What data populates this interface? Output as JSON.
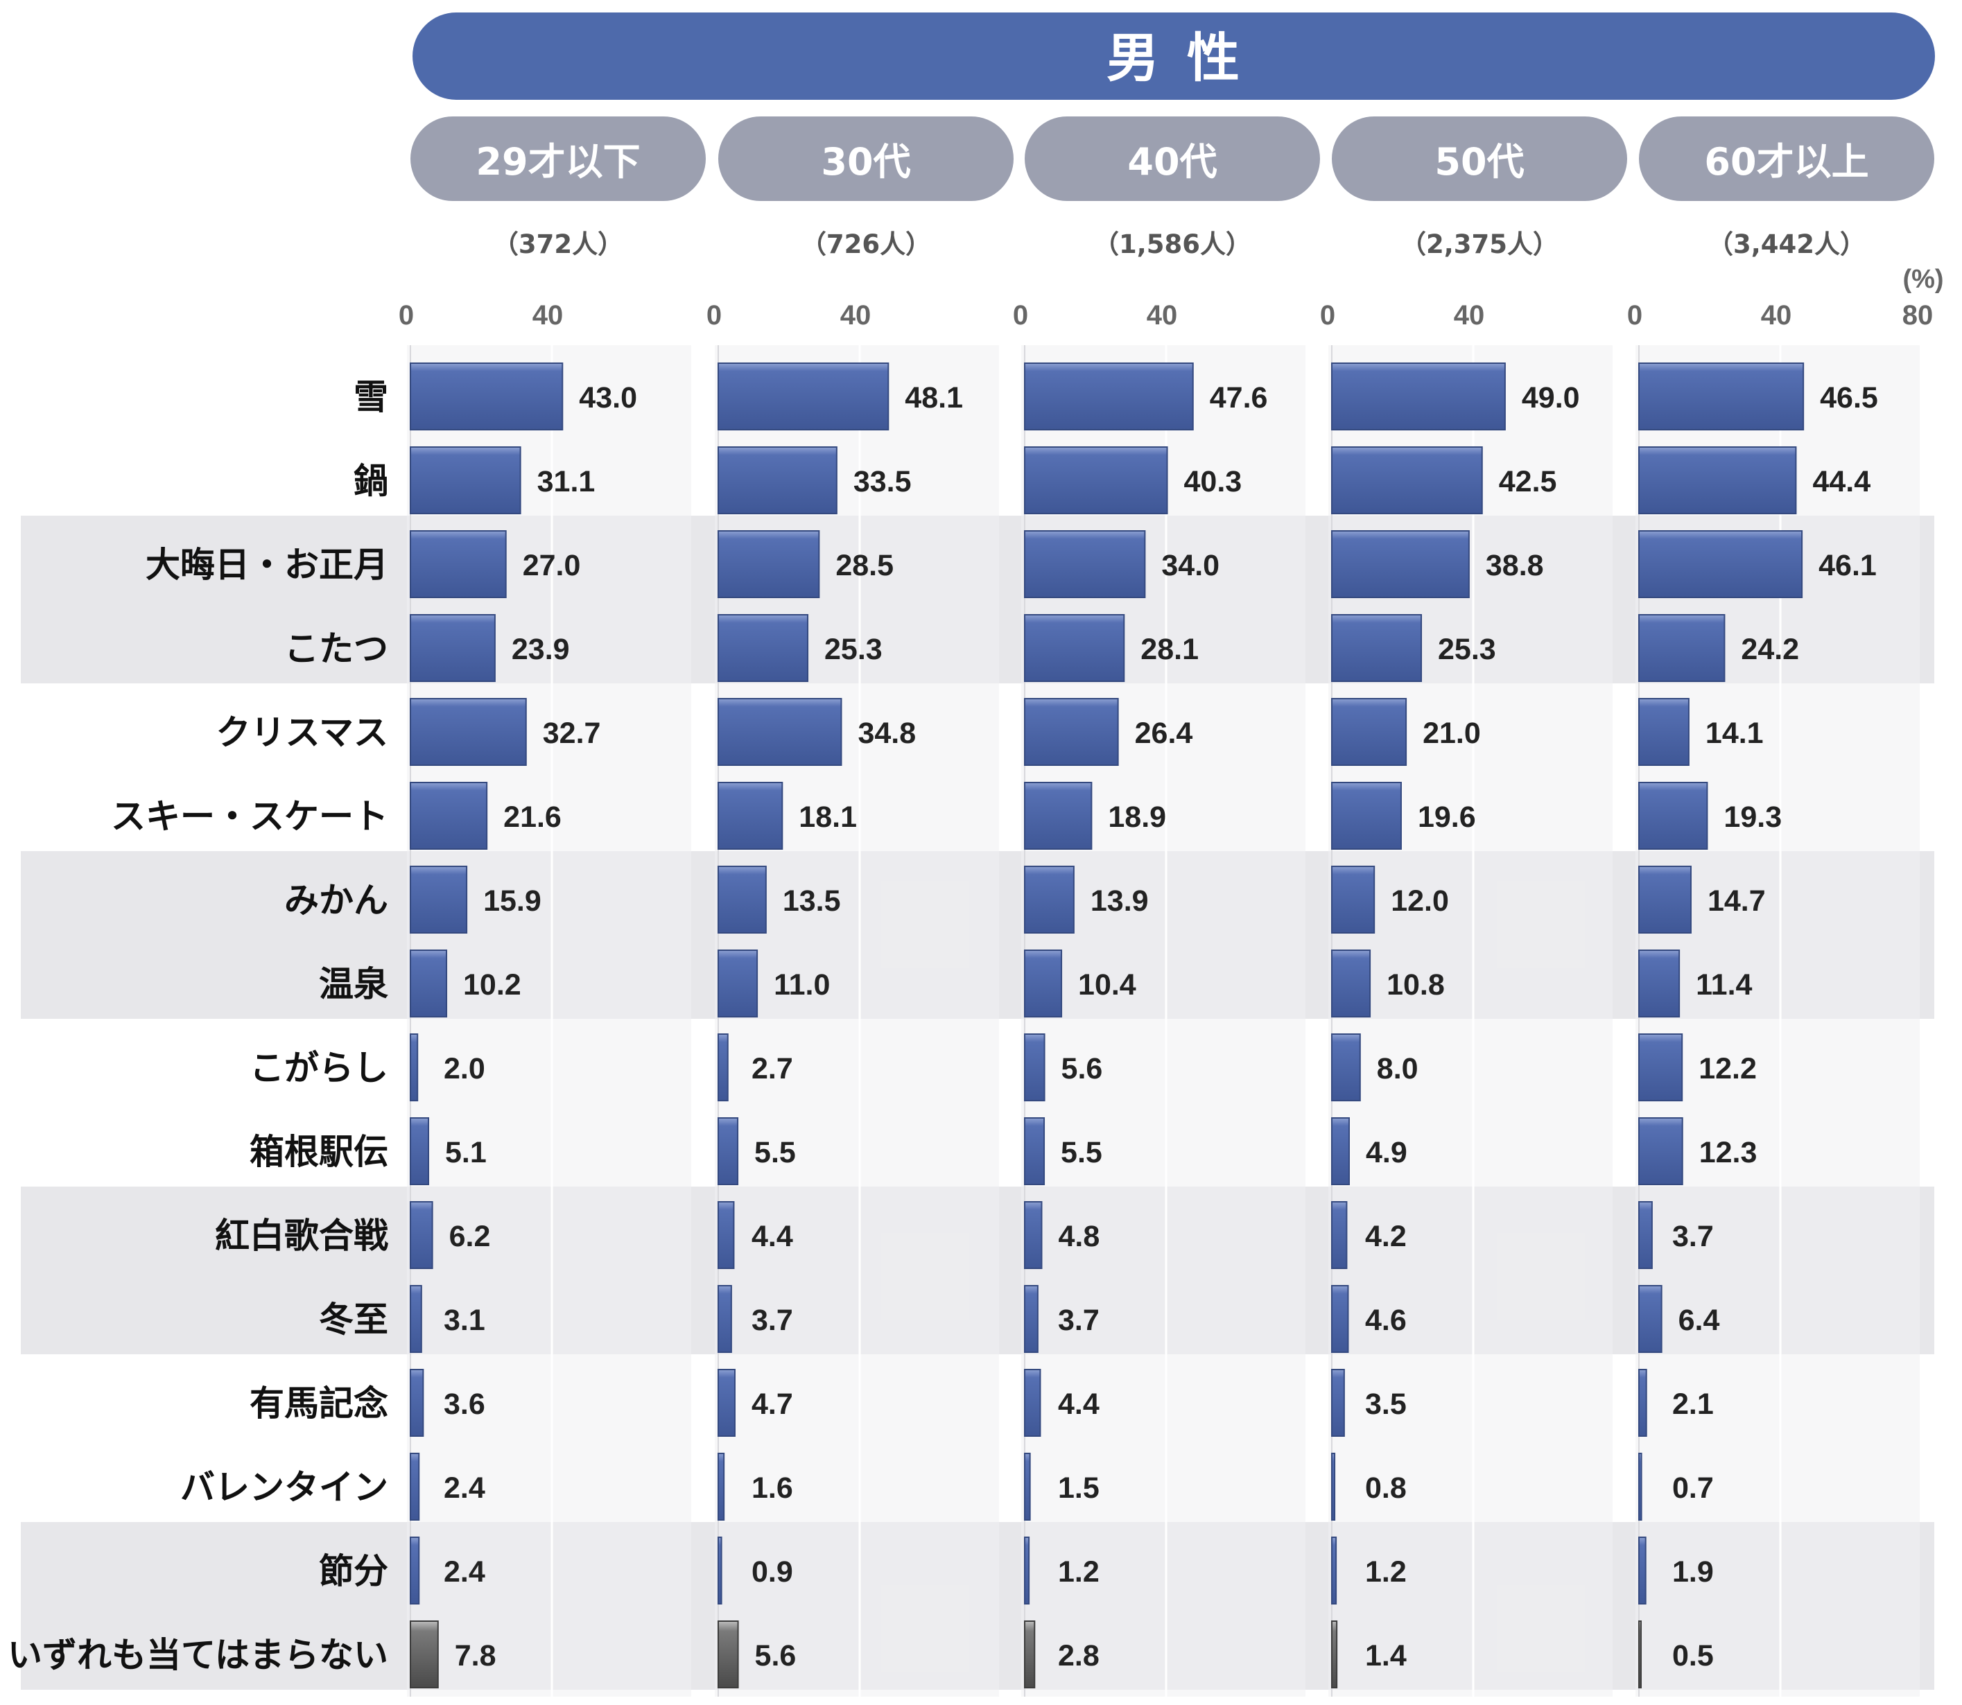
{
  "header": {
    "title": "男性"
  },
  "unit_label": "(%)",
  "colors": {
    "banner": "#4e6aab",
    "pill": "#9ca0b0",
    "bar": "#4a64a8",
    "bar_other": "#6e6e6e",
    "panel": "#f1f1f3",
    "band": "#e7e7ea"
  },
  "chart_data": {
    "type": "bar",
    "orientation": "horizontal",
    "title": "男性",
    "unit": "(%)",
    "xlim": [
      0,
      80
    ],
    "ticks": [
      "0",
      "40",
      "80"
    ],
    "categories": [
      "雪",
      "鍋",
      "大晦日・お正月",
      "こたつ",
      "クリスマス",
      "スキー・スケート",
      "みかん",
      "温泉",
      "こがらし",
      "箱根駅伝",
      "紅白歌合戦",
      "冬至",
      "有馬記念",
      "バレンタイン",
      "節分",
      "いずれも当てはまらない"
    ],
    "series": [
      {
        "name": "29才以下",
        "n": "（372人）",
        "values": [
          43.0,
          31.1,
          27.0,
          23.9,
          32.7,
          21.6,
          15.9,
          10.2,
          2.0,
          5.1,
          6.2,
          3.1,
          3.6,
          2.4,
          2.4,
          7.8
        ],
        "labels": [
          "43.0",
          "31.1",
          "27.0",
          "23.9",
          "32.7",
          "21.6",
          "15.9",
          "10.2",
          "2.0",
          "5.1",
          "6.2",
          "3.1",
          "3.6",
          "2.4",
          "2.4",
          "7.8"
        ]
      },
      {
        "name": "30代",
        "n": "（726人）",
        "values": [
          48.1,
          33.5,
          28.5,
          25.3,
          34.8,
          18.1,
          13.5,
          11.0,
          2.7,
          5.5,
          4.4,
          3.7,
          4.7,
          1.6,
          0.9,
          5.6
        ],
        "labels": [
          "48.1",
          "33.5",
          "28.5",
          "25.3",
          "34.8",
          "18.1",
          "13.5",
          "11.0",
          "2.7",
          "5.5",
          "4.4",
          "3.7",
          "4.7",
          "1.6",
          "0.9",
          "5.6"
        ]
      },
      {
        "name": "40代",
        "n": "（1,586人）",
        "values": [
          47.6,
          40.3,
          34.0,
          28.1,
          26.4,
          18.9,
          13.9,
          10.4,
          5.6,
          5.5,
          4.8,
          3.7,
          4.4,
          1.5,
          1.2,
          2.8
        ],
        "labels": [
          "47.6",
          "40.3",
          "34.0",
          "28.1",
          "26.4",
          "18.9",
          "13.9",
          "10.4",
          "5.6",
          "5.5",
          "4.8",
          "3.7",
          "4.4",
          "1.5",
          "1.2",
          "2.8"
        ]
      },
      {
        "name": "50代",
        "n": "（2,375人）",
        "values": [
          49.0,
          42.5,
          38.8,
          25.3,
          21.0,
          19.6,
          12.0,
          10.8,
          8.0,
          4.9,
          4.2,
          4.6,
          3.5,
          0.8,
          1.2,
          1.4
        ],
        "labels": [
          "49.0",
          "42.5",
          "38.8",
          "25.3",
          "21.0",
          "19.6",
          "12.0",
          "10.8",
          "8.0",
          "4.9",
          "4.2",
          "4.6",
          "3.5",
          "0.8",
          "1.2",
          "1.4"
        ]
      },
      {
        "name": "60才以上",
        "n": "（3,442人）",
        "values": [
          46.5,
          44.4,
          46.1,
          24.2,
          14.1,
          19.3,
          14.7,
          11.4,
          12.2,
          12.3,
          3.7,
          6.4,
          2.1,
          0.7,
          1.9,
          0.5
        ],
        "labels": [
          "46.5",
          "44.4",
          "46.1",
          "24.2",
          "14.1",
          "19.3",
          "14.7",
          "11.4",
          "12.2",
          "12.3",
          "3.7",
          "6.4",
          "2.1",
          "0.7",
          "1.9",
          "0.5"
        ]
      }
    ]
  }
}
